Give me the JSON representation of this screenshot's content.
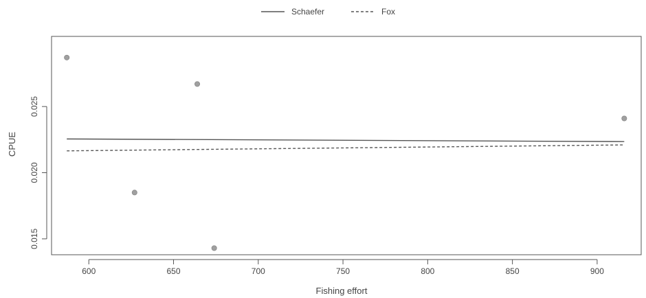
{
  "chart_data": {
    "type": "scatter",
    "title": "",
    "xlabel": "Fishing effort",
    "ylabel": "CPUE",
    "xlim": [
      578,
      926
    ],
    "ylim": [
      0.0138,
      0.0303
    ],
    "x_ticks": [
      600,
      650,
      700,
      750,
      800,
      850,
      900
    ],
    "y_ticks": [
      0.015,
      0.02,
      0.025
    ],
    "x_tick_labels": [
      "600",
      "650",
      "700",
      "750",
      "800",
      "850",
      "900"
    ],
    "y_tick_labels": [
      "0.015",
      "0.020",
      "0.025"
    ],
    "grid": false,
    "legend_position": "top-center",
    "points": {
      "x": [
        587,
        627,
        664,
        674,
        916
      ],
      "y": [
        0.0287,
        0.0185,
        0.0267,
        0.0143,
        0.0241
      ],
      "color": "#a0a0a0"
    },
    "series": [
      {
        "name": "Schaefer",
        "style": "solid",
        "color": "#555555",
        "x": [
          587,
          916
        ],
        "y": [
          0.02255,
          0.02235
        ]
      },
      {
        "name": "Fox",
        "style": "dashed",
        "color": "#555555",
        "x": [
          587,
          916
        ],
        "y": [
          0.02165,
          0.0221
        ]
      }
    ]
  }
}
